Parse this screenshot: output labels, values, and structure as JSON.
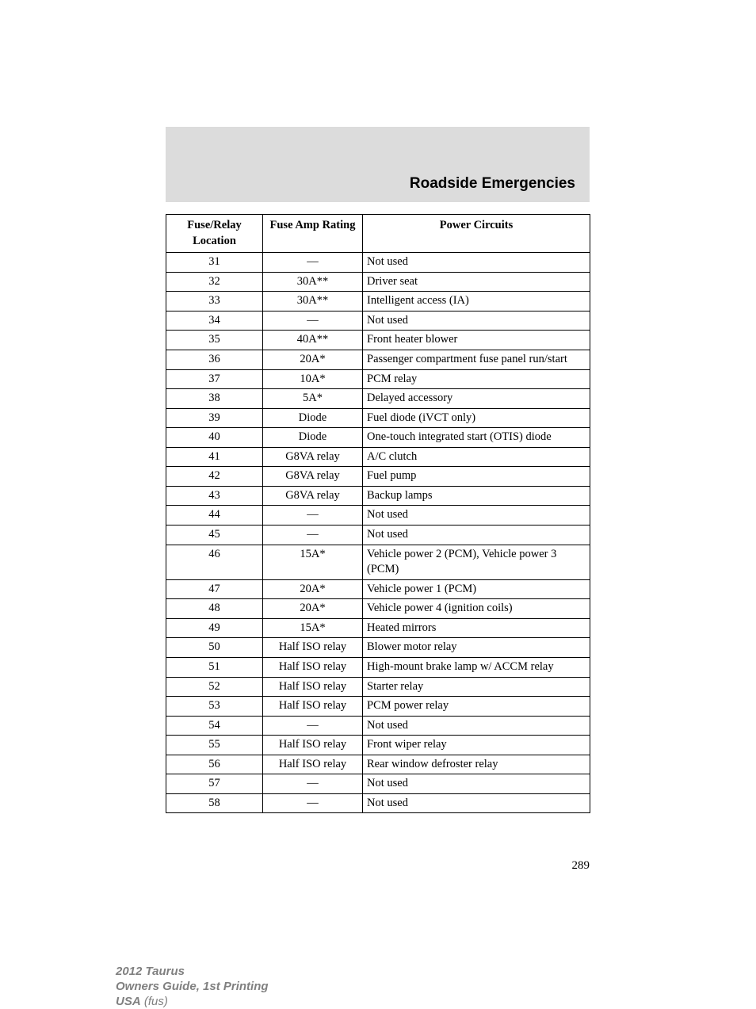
{
  "header": {
    "title": "Roadside Emergencies"
  },
  "table": {
    "columns": [
      "Fuse/Relay Location",
      "Fuse Amp Rating",
      "Power Circuits"
    ],
    "rows": [
      {
        "location": "31",
        "rating": "—",
        "circuits": "Not used"
      },
      {
        "location": "32",
        "rating": "30A**",
        "circuits": "Driver seat"
      },
      {
        "location": "33",
        "rating": "30A**",
        "circuits": "Intelligent access (IA)"
      },
      {
        "location": "34",
        "rating": "—",
        "circuits": "Not used"
      },
      {
        "location": "35",
        "rating": "40A**",
        "circuits": "Front heater blower"
      },
      {
        "location": "36",
        "rating": "20A*",
        "circuits": "Passenger compartment fuse panel run/start"
      },
      {
        "location": "37",
        "rating": "10A*",
        "circuits": "PCM relay"
      },
      {
        "location": "38",
        "rating": "5A*",
        "circuits": "Delayed accessory"
      },
      {
        "location": "39",
        "rating": "Diode",
        "circuits": "Fuel diode (iVCT only)"
      },
      {
        "location": "40",
        "rating": "Diode",
        "circuits": "One-touch integrated start (OTIS) diode"
      },
      {
        "location": "41",
        "rating": "G8VA relay",
        "circuits": "A/C clutch"
      },
      {
        "location": "42",
        "rating": "G8VA relay",
        "circuits": "Fuel pump"
      },
      {
        "location": "43",
        "rating": "G8VA relay",
        "circuits": "Backup lamps"
      },
      {
        "location": "44",
        "rating": "—",
        "circuits": "Not used"
      },
      {
        "location": "45",
        "rating": "—",
        "circuits": "Not used"
      },
      {
        "location": "46",
        "rating": "15A*",
        "circuits": "Vehicle power 2 (PCM), Vehicle power 3 (PCM)"
      },
      {
        "location": "47",
        "rating": "20A*",
        "circuits": "Vehicle power 1 (PCM)"
      },
      {
        "location": "48",
        "rating": "20A*",
        "circuits": "Vehicle power 4 (ignition coils)"
      },
      {
        "location": "49",
        "rating": "15A*",
        "circuits": "Heated mirrors"
      },
      {
        "location": "50",
        "rating": "Half ISO relay",
        "circuits": "Blower motor relay"
      },
      {
        "location": "51",
        "rating": "Half ISO relay",
        "circuits": "High-mount brake lamp w/ ACCM relay"
      },
      {
        "location": "52",
        "rating": "Half ISO relay",
        "circuits": "Starter relay"
      },
      {
        "location": "53",
        "rating": "Half ISO relay",
        "circuits": "PCM power relay"
      },
      {
        "location": "54",
        "rating": "—",
        "circuits": "Not used"
      },
      {
        "location": "55",
        "rating": "Half ISO relay",
        "circuits": "Front wiper relay"
      },
      {
        "location": "56",
        "rating": "Half ISO relay",
        "circuits": "Rear window defroster relay"
      },
      {
        "location": "57",
        "rating": "—",
        "circuits": "Not used"
      },
      {
        "location": "58",
        "rating": "—",
        "circuits": "Not used"
      }
    ]
  },
  "page_number": "289",
  "footer": {
    "line1": "2012 Taurus",
    "line2": "Owners Guide, 1st Printing",
    "line3_bold": "USA",
    "line3_light": " (fus)"
  }
}
